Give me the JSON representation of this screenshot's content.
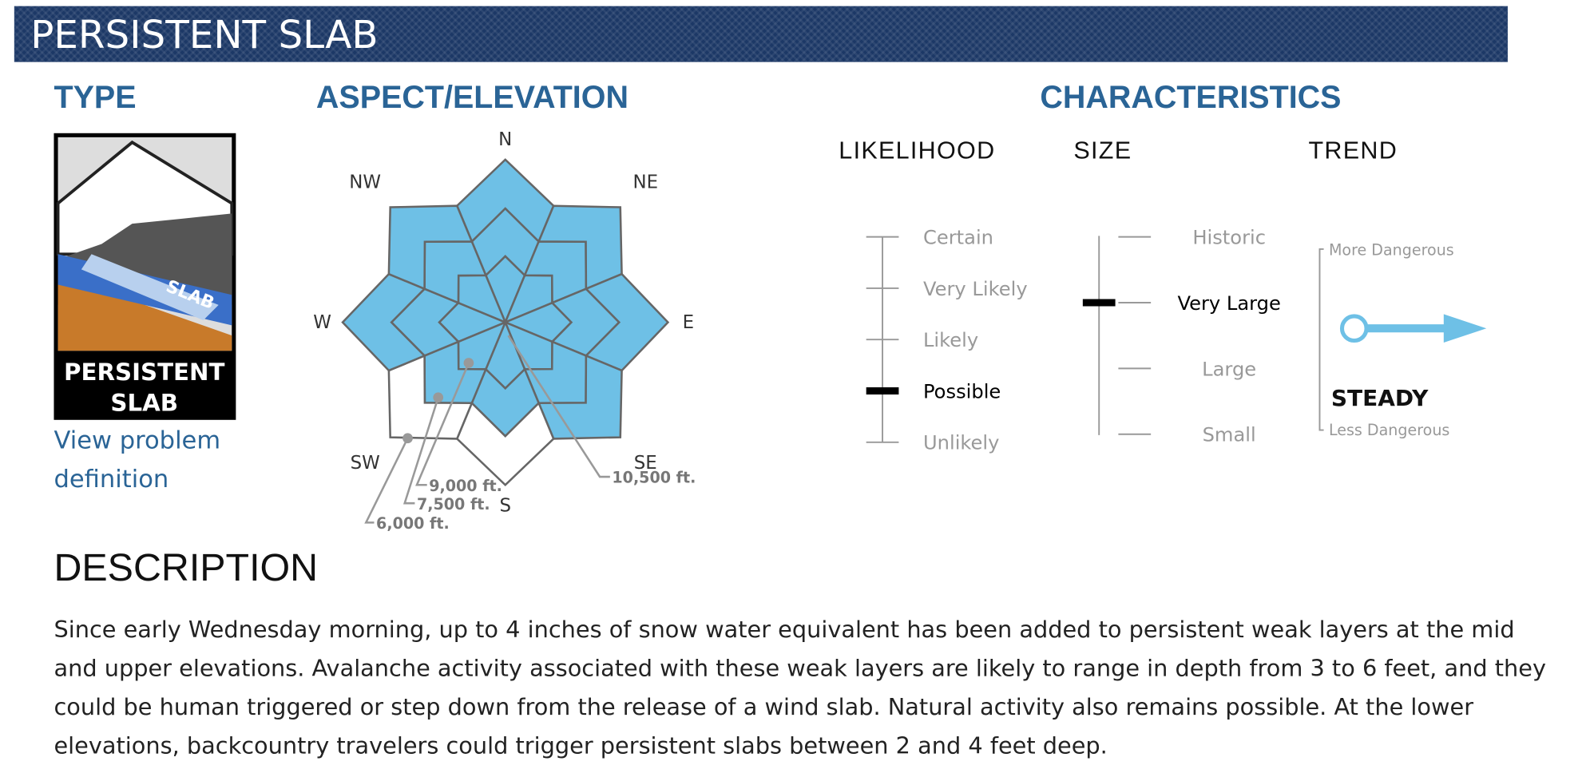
{
  "header": {
    "title": "PERSISTENT SLAB"
  },
  "type": {
    "heading": "TYPE",
    "icon_text": "SLAB",
    "icon_label": [
      "PERSISTENT",
      "SLAB"
    ],
    "link": "View problem definition"
  },
  "aspect": {
    "heading": "ASPECT/ELEVATION",
    "aspects": [
      "N",
      "NE",
      "E",
      "SE",
      "S",
      "SW",
      "W",
      "NW"
    ],
    "elevations": [
      "10,500 ft.",
      "9,000 ft.",
      "7,500 ft.",
      "6,000 ft."
    ],
    "filled": [
      [
        true,
        true,
        true,
        true,
        true,
        true,
        true,
        true
      ],
      [
        true,
        true,
        true,
        true,
        true,
        true,
        true,
        true
      ],
      [
        true,
        true,
        true,
        true,
        false,
        false,
        true,
        true
      ]
    ]
  },
  "characteristics": {
    "heading": "CHARACTERISTICS",
    "likelihood": {
      "heading": "LIKELIHOOD",
      "levels": [
        "Certain",
        "Very Likely",
        "Likely",
        "Possible",
        "Unlikely"
      ],
      "selected": "Possible"
    },
    "size": {
      "heading": "SIZE",
      "levels": [
        "Historic",
        "Very Large",
        "Large",
        "Small"
      ],
      "selected": "Very Large"
    },
    "trend": {
      "heading": "TREND",
      "top": "More Dangerous",
      "bottom": "Less Dangerous",
      "value": "STEADY"
    }
  },
  "description": {
    "heading": "DESCRIPTION",
    "text": "Since early Wednesday morning, up to 4 inches of snow water equivalent has been added to persistent weak layers at the mid and upper elevations. Avalanche activity associated with these weak layers are likely to range in depth from 3 to 6 feet, and they could be human triggered or step down from the release of a wind slab. Natural activity also remains possible. At the lower elevations, backcountry travelers could trigger persistent slabs between 2 and 4 feet deep."
  }
}
